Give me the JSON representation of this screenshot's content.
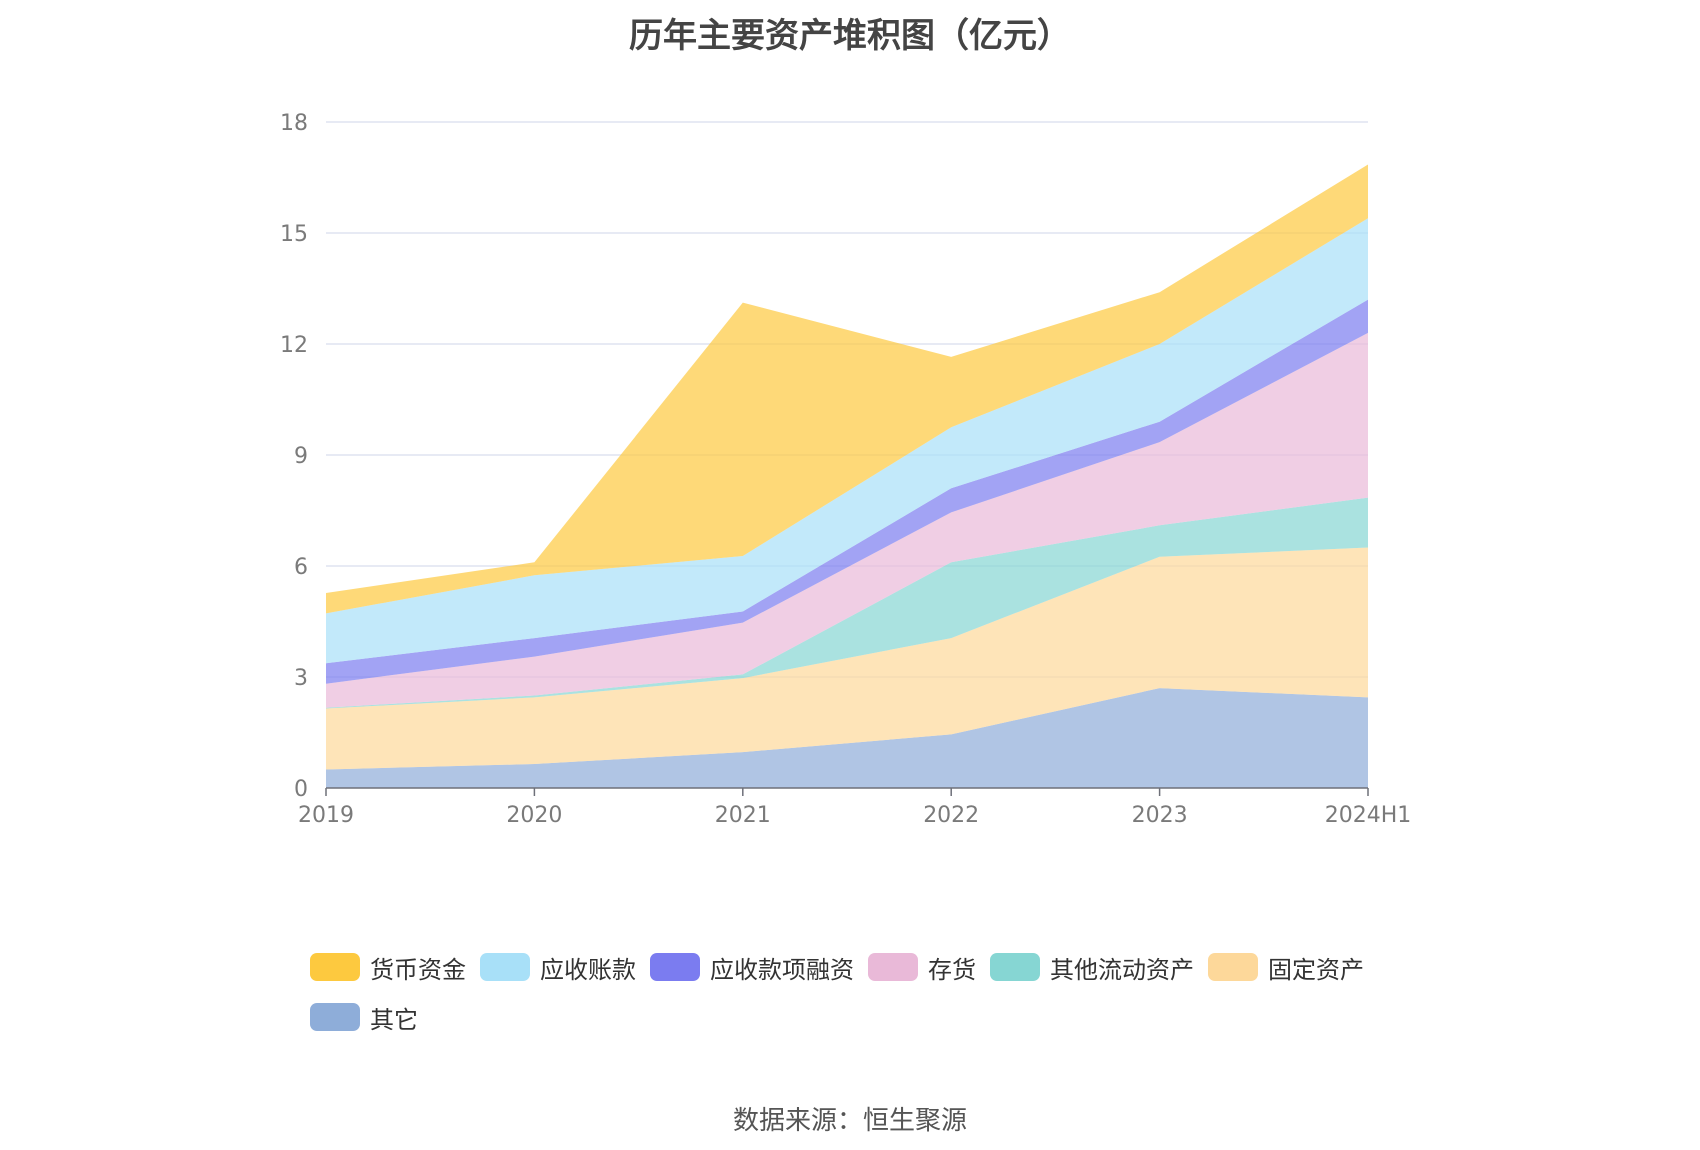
{
  "chart_data": {
    "type": "area",
    "stacked": true,
    "title": "历年主要资产堆积图（亿元）",
    "categories": [
      "2019",
      "2020",
      "2021",
      "2022",
      "2023",
      "2024H1"
    ],
    "ylim": [
      0,
      18
    ],
    "yticks": [
      "0",
      "3",
      "6",
      "9",
      "12",
      "15",
      "18"
    ],
    "grid": true,
    "legend_position": "bottom",
    "series": [
      {
        "name": "其它",
        "color": "#8eadd9",
        "values": [
          0.5,
          0.65,
          0.97,
          1.45,
          2.7,
          2.45
        ]
      },
      {
        "name": "固定资产",
        "color": "#fdd89a",
        "values": [
          1.65,
          1.8,
          2.0,
          2.6,
          3.55,
          4.05
        ]
      },
      {
        "name": "其他流动资产",
        "color": "#86d6d3",
        "values": [
          0.02,
          0.05,
          0.1,
          2.05,
          0.85,
          1.35
        ]
      },
      {
        "name": "存货",
        "color": "#e9b9d8",
        "values": [
          0.65,
          1.05,
          1.4,
          1.35,
          2.25,
          4.45
        ]
      },
      {
        "name": "应收款项融资",
        "color": "#7b7cf0",
        "values": [
          0.55,
          0.5,
          0.3,
          0.65,
          0.55,
          0.9
        ]
      },
      {
        "name": "应收账款",
        "color": "#a8e0f8",
        "values": [
          1.35,
          1.7,
          1.5,
          1.65,
          2.1,
          2.2
        ]
      },
      {
        "name": "货币资金",
        "color": "#fdc93f",
        "values": [
          0.55,
          0.35,
          6.85,
          1.9,
          1.4,
          1.45
        ]
      }
    ],
    "legend_order": [
      "货币资金",
      "应收账款",
      "应收款项融资",
      "存货",
      "其他流动资产",
      "固定资产",
      "其它"
    ]
  },
  "source_text": "数据来源：恒生聚源"
}
